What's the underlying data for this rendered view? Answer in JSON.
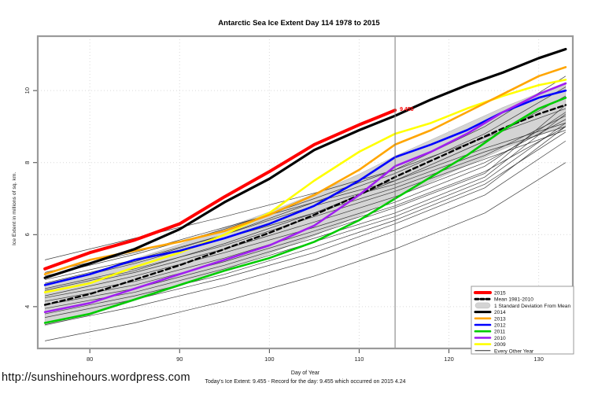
{
  "title": "Antarctic Sea Ice Extent Day 114 1978 to 2015",
  "footer": {
    "url": "http://sunshinehours.wordpress.com",
    "caption": "Today's Ice Extent: 9.455  - Record for the day: 9.455 which occurred on 2015 4.24"
  },
  "annotation": {
    "text": "9.455",
    "day": 114,
    "value": 9.455,
    "color": "#FF0000"
  },
  "chart_data": {
    "type": "line",
    "title": "Antarctic Sea Ice Extent Day 114 1978 to 2015",
    "xlabel": "Day of Year",
    "ylabel": "Ice Extent in millions of sq. km.",
    "x_range": [
      74.2,
      133.8
    ],
    "y_range": [
      2.84,
      11.51
    ],
    "x_ticks": [
      80,
      90,
      100,
      110,
      120,
      130
    ],
    "y_ticks": [
      4,
      6,
      8,
      10
    ],
    "grid": true,
    "marker_day": 114,
    "colors": {
      "frame": "#9a9a9a",
      "gridline": "#d9d9d9",
      "marker_line": "#7a7a7a",
      "band": "#d4d4d4",
      "thin_line": "#2a2a2a"
    },
    "days": [
      75,
      80,
      85,
      90,
      95,
      100,
      105,
      110,
      114,
      118,
      122,
      126,
      130,
      133
    ],
    "band": {
      "label": "1 Standard Deviation From Mean",
      "around": "Mean 1981-2010",
      "offset": 0.58,
      "color": "#d4d4d4"
    },
    "series": [
      {
        "name": "Mean 1981-2010",
        "color": "#000000",
        "width": 2.4,
        "dash": "6,4",
        "values": [
          4.05,
          4.35,
          4.75,
          5.15,
          5.6,
          6.05,
          6.55,
          7.1,
          7.6,
          8.05,
          8.5,
          8.95,
          9.35,
          9.6
        ]
      },
      {
        "name": "2009",
        "color": "#ffff00",
        "width": 2.6,
        "values": [
          4.4,
          4.65,
          5.1,
          5.5,
          6.0,
          6.6,
          7.5,
          8.3,
          8.8,
          9.1,
          9.5,
          9.85,
          10.15,
          10.3
        ]
      },
      {
        "name": "2013",
        "color": "#ffa500",
        "width": 2.6,
        "values": [
          4.9,
          5.3,
          5.55,
          5.8,
          6.1,
          6.55,
          7.1,
          7.8,
          8.5,
          8.9,
          9.4,
          9.9,
          10.4,
          10.65
        ]
      },
      {
        "name": "2012",
        "color": "#0000ff",
        "width": 2.6,
        "values": [
          4.6,
          4.9,
          5.3,
          5.55,
          5.9,
          6.3,
          6.8,
          7.5,
          8.15,
          8.5,
          8.9,
          9.4,
          9.8,
          10.0
        ]
      },
      {
        "name": "2010",
        "color": "#a020f0",
        "width": 2.6,
        "values": [
          3.85,
          4.1,
          4.5,
          4.9,
          5.3,
          5.7,
          6.25,
          7.1,
          7.9,
          8.3,
          8.8,
          9.4,
          9.9,
          10.2
        ]
      },
      {
        "name": "2011",
        "color": "#00cc00",
        "width": 2.6,
        "values": [
          3.55,
          3.8,
          4.2,
          4.6,
          5.0,
          5.35,
          5.8,
          6.4,
          7.0,
          7.6,
          8.2,
          8.9,
          9.5,
          9.8
        ]
      },
      {
        "name": "2014",
        "color": "#000000",
        "width": 3.2,
        "values": [
          4.8,
          5.2,
          5.6,
          6.15,
          6.9,
          7.55,
          8.35,
          8.9,
          9.3,
          9.75,
          10.15,
          10.5,
          10.9,
          11.15
        ]
      },
      {
        "name": "2015",
        "color": "#ff0000",
        "width": 4,
        "days": [
          75,
          80,
          85,
          90,
          95,
          100,
          105,
          110,
          112,
          114
        ],
        "values": [
          5.05,
          5.5,
          5.85,
          6.3,
          7.05,
          7.75,
          8.5,
          9.05,
          9.25,
          9.455
        ]
      }
    ],
    "other_years": {
      "label": "Every Other Year",
      "days": [
        75,
        85,
        95,
        105,
        114,
        124,
        133
      ],
      "lines": [
        [
          5.3,
          5.9,
          6.5,
          7.15,
          7.8,
          8.7,
          9.5
        ],
        [
          4.95,
          5.5,
          6.2,
          6.9,
          7.5,
          8.4,
          9.1
        ],
        [
          4.85,
          5.45,
          6.15,
          7.0,
          7.8,
          9.0,
          10.4
        ],
        [
          4.75,
          5.3,
          6.0,
          6.8,
          7.4,
          8.3,
          9.0
        ],
        [
          4.65,
          5.25,
          6.0,
          6.9,
          7.7,
          8.8,
          10.1
        ],
        [
          4.6,
          5.2,
          5.9,
          6.6,
          7.3,
          8.2,
          9.3
        ],
        [
          4.5,
          5.05,
          5.7,
          6.5,
          7.2,
          8.1,
          8.9
        ],
        [
          4.45,
          5.0,
          5.75,
          6.6,
          7.5,
          8.6,
          9.85
        ],
        [
          4.4,
          4.95,
          5.6,
          6.35,
          7.05,
          8.0,
          9.2
        ],
        [
          4.3,
          4.85,
          5.5,
          6.2,
          6.9,
          7.9,
          9.4
        ],
        [
          4.25,
          4.7,
          5.35,
          6.1,
          6.8,
          7.75,
          9.0
        ],
        [
          4.15,
          4.6,
          5.25,
          6.0,
          6.75,
          7.7,
          9.6
        ],
        [
          4.05,
          4.5,
          5.15,
          5.9,
          6.6,
          7.6,
          9.35
        ],
        [
          3.95,
          4.4,
          5.05,
          5.8,
          6.5,
          7.5,
          9.1
        ],
        [
          3.8,
          4.3,
          4.9,
          5.65,
          6.4,
          7.4,
          8.85
        ],
        [
          3.7,
          4.2,
          4.8,
          5.5,
          6.3,
          7.3,
          9.0
        ],
        [
          3.5,
          4.0,
          4.6,
          5.3,
          6.1,
          7.1,
          8.6
        ],
        [
          3.05,
          3.55,
          4.15,
          4.85,
          5.6,
          6.6,
          8.0
        ]
      ]
    },
    "legend": {
      "items": [
        {
          "label": "2015",
          "swatch": "line",
          "color": "#ff0000",
          "width": 4
        },
        {
          "label": "Mean 1981-2010",
          "swatch": "dashed",
          "color": "#000000",
          "width": 3
        },
        {
          "label": "1 Standard Deviation From Mean",
          "swatch": "band",
          "color": "#d4d4d4",
          "width": 7
        },
        {
          "label": "2014",
          "swatch": "line",
          "color": "#000000",
          "width": 3
        },
        {
          "label": "2013",
          "swatch": "line",
          "color": "#ffa500",
          "width": 2.6
        },
        {
          "label": "2012",
          "swatch": "line",
          "color": "#0000ff",
          "width": 2.6
        },
        {
          "label": "2011",
          "swatch": "line",
          "color": "#00cc00",
          "width": 2.6
        },
        {
          "label": "2010",
          "swatch": "line",
          "color": "#a020f0",
          "width": 2.6
        },
        {
          "label": "2009",
          "swatch": "line",
          "color": "#ffff00",
          "width": 2.6
        },
        {
          "label": "Every Other Year",
          "swatch": "line",
          "color": "#2a2a2a",
          "width": 1
        }
      ]
    }
  }
}
